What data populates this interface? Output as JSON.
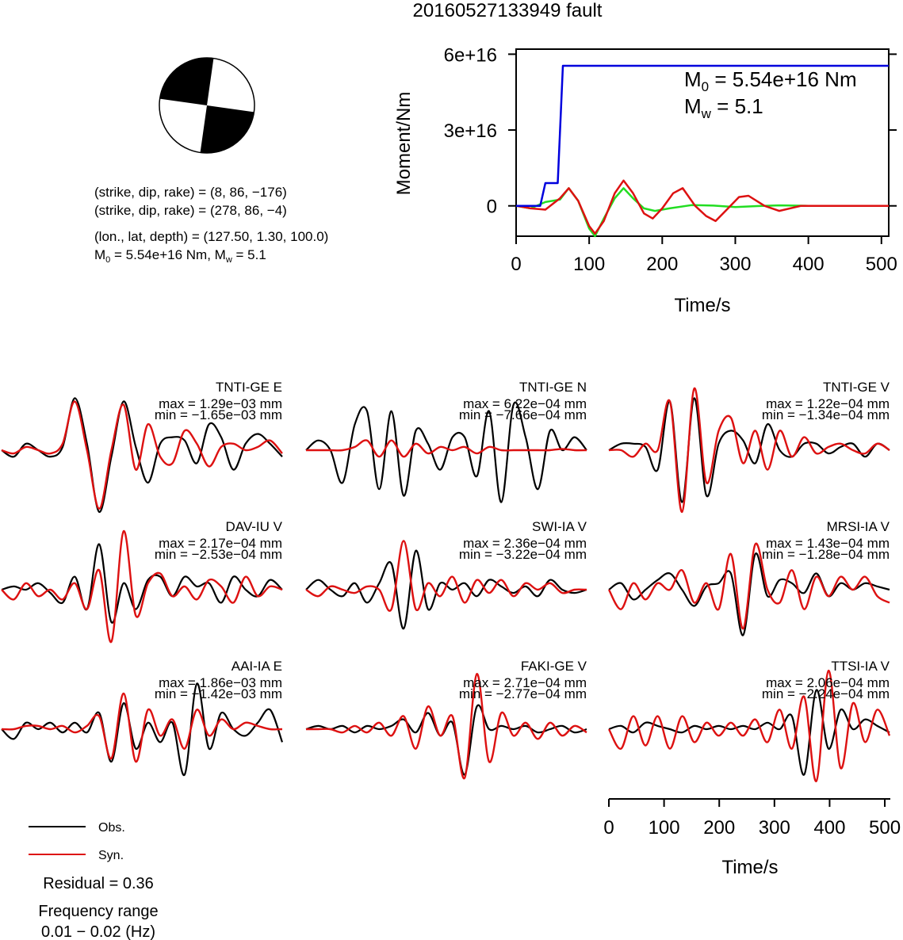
{
  "title": "20160527133949 fault",
  "info": {
    "line1": "(strike, dip, rake) = (8, 86, −176)",
    "line2": "(strike, dip, rake) = (278, 86, −4)",
    "line3": "(lon., lat, depth) = (127.50, 1.30, 100.0)",
    "m0_prefix": "M",
    "m0_sub": "0",
    "m0_rest": " = 5.54e+16 Nm, M",
    "mw_sub": "w",
    "mw_rest": " = 5.1"
  },
  "moment_plot": {
    "ylabel": "Moment/Nm",
    "xlabel": "Time/s",
    "yticks": [
      "0",
      "3e+16",
      "6e+16"
    ],
    "xticks": [
      "0",
      "100",
      "200",
      "300",
      "400",
      "500"
    ],
    "ann_m0_main": "M",
    "ann_m0_sub": "0",
    "ann_m0_rest": " = 5.54e+16 Nm",
    "ann_mw_main": "M",
    "ann_mw_sub": "w",
    "ann_mw_rest": " = 5.1"
  },
  "wave_axis": {
    "xlabel": "Time/s",
    "xticks": [
      "0",
      "100",
      "200",
      "300",
      "400",
      "500"
    ]
  },
  "legend": {
    "obs": "Obs.",
    "syn": "Syn.",
    "residual": "Residual = 0.36",
    "freq_title": "Frequency range",
    "freq_range": "0.01 − 0.02 (Hz)"
  },
  "colors": {
    "moment_cumulative": "#0000dd",
    "moment_rate_a": "#22dd22",
    "moment_rate_b": "#dd1111",
    "obs": "#000000",
    "syn": "#dd1111"
  },
  "chart_data": [
    {
      "type": "line",
      "title": "",
      "xlabel": "Time/s",
      "ylabel": "Moment/Nm",
      "xlim": [
        0,
        510
      ],
      "ylim": [
        -1.2e+16,
        6.2e+16
      ],
      "series": [
        {
          "x": [
            0,
            33,
            40,
            57,
            64,
            510
          ],
          "values": [
            0,
            0,
            9000000000000000.0,
            9000000000000000.0,
            5.54e+16,
            5.54e+16
          ]
        },
        {
          "x": [
            0,
            20,
            40,
            60,
            72,
            85,
            100,
            108,
            120,
            135,
            147,
            160,
            175,
            190,
            210,
            240,
            270,
            300,
            330,
            360,
            400,
            450,
            510
          ],
          "values": [
            0,
            -1000000000000000.0,
            1500000000000000.0,
            2500000000000000.0,
            7000000000000000.0,
            2000000000000000.0,
            -9000000000000000.0,
            -1.2e+16,
            -5000000000000000.0,
            3000000000000000.0,
            7000000000000000.0,
            3000000000000000.0,
            -1000000000000000.0,
            -2000000000000000.0,
            -1000000000000000.0,
            300000000000000.0,
            100000000000000.0,
            -500000000000000.0,
            -100000000000000.0,
            200000000000000.0,
            0,
            0,
            0
          ]
        },
        {
          "x": [
            0,
            20,
            40,
            60,
            72,
            85,
            100,
            108,
            120,
            135,
            147,
            160,
            175,
            187,
            200,
            215,
            228,
            245,
            260,
            273,
            290,
            305,
            318,
            340,
            360,
            390,
            430,
            470,
            510
          ],
          "values": [
            0,
            -1000000000000000.0,
            -1500000000000000.0,
            3000000000000000.0,
            7000000000000000.0,
            2000000000000000.0,
            -8000000000000000.0,
            -1.1e+16,
            -6000000000000000.0,
            5000000000000000.0,
            1e+16,
            5000000000000000.0,
            -3000000000000000.0,
            -5000000000000000.0,
            -1000000000000000.0,
            5000000000000000.0,
            7000000000000000.0,
            0,
            -4000000000000000.0,
            -6000000000000000.0,
            -1000000000000000.0,
            3500000000000000.0,
            4000000000000000.0,
            0,
            -2000000000000000.0,
            0,
            0,
            0,
            0
          ]
        }
      ],
      "annotations": [
        "M0 = 5.54e+16 Nm",
        "Mw = 5.1"
      ]
    },
    {
      "type": "line",
      "xlabel": "Time/s",
      "xlim": [
        0,
        510
      ],
      "stations": [
        {
          "name": "TNTI-GE E",
          "max": "max = 1.29e−03 mm",
          "min": "min = −1.65e−03 mm",
          "obs": [
            0,
            -0.1,
            0.1,
            0,
            -0.1,
            0.05,
            0.8,
            0.1,
            -0.95,
            -0.1,
            0.75,
            0.05,
            -0.5,
            0.1,
            0.2,
            0.15,
            -0.2,
            0.4,
            0.2,
            -0.3,
            0.1,
            0.25,
            0.1,
            -0.1
          ],
          "syn": [
            0,
            -0.05,
            0.05,
            0,
            -0.05,
            0.1,
            0.75,
            0,
            -0.9,
            0,
            0.7,
            -0.3,
            0.4,
            -0.1,
            -0.2,
            0.3,
            0.1,
            -0.25,
            0.05,
            0.1,
            0,
            0.05,
            0.15,
            -0.05
          ]
        },
        {
          "name": "TNTI-GE N",
          "max": "max = 6.22e−04 mm",
          "min": "min = −7.66e−04 mm",
          "obs": [
            0,
            0.15,
            0,
            -0.5,
            0.4,
            0.6,
            -0.6,
            0.6,
            -0.7,
            0.3,
            0.1,
            -0.3,
            0.2,
            0.2,
            -0.4,
            0.6,
            -0.8,
            0.7,
            0.2,
            -0.6,
            0.3,
            0,
            0.2,
            0
          ],
          "syn": [
            0,
            0,
            0,
            0,
            0.05,
            0.15,
            -0.1,
            0.15,
            -0.1,
            0.1,
            -0.05,
            0.05,
            0,
            0.05,
            -0.05,
            0.05,
            0,
            0,
            0,
            0,
            0,
            0.02,
            0,
            0
          ]
        },
        {
          "name": "TNTI-GE V",
          "max": "max = 1.22e−04 mm",
          "min": "min = −1.34e−04 mm",
          "obs": [
            0,
            0.1,
            0.1,
            0.05,
            -0.3,
            0.75,
            -0.8,
            0.8,
            -0.7,
            0.1,
            0.3,
            0.15,
            -0.2,
            0.4,
            0,
            -0.1,
            0.1,
            0.1,
            -0.05,
            0.05,
            0.1,
            -0.1,
            0.1,
            0
          ],
          "syn": [
            0,
            0,
            -0.1,
            0.1,
            0,
            0.75,
            -0.95,
            0.95,
            -0.5,
            0.3,
            0.5,
            -0.2,
            0.3,
            -0.3,
            0.3,
            -0.1,
            0.2,
            -0.05,
            0.05,
            0.1,
            0,
            -0.05,
            0.1,
            0
          ]
        },
        {
          "name": "DAV-IU V",
          "max": "max = 2.17e−04 mm",
          "min": "min = −2.53e−04 mm",
          "obs": [
            0,
            0.05,
            0,
            0.1,
            -0.05,
            -0.2,
            0.2,
            -0.3,
            0.7,
            -0.5,
            0.1,
            -0.3,
            0.15,
            0.2,
            -0.1,
            0.2,
            0.05,
            0.1,
            -0.2,
            0.2,
            0,
            -0.1,
            0.15,
            0
          ],
          "syn": [
            0,
            -0.15,
            0.1,
            -0.1,
            0,
            -0.15,
            0.1,
            -0.3,
            0.3,
            -0.8,
            0.9,
            -0.4,
            0.1,
            0.25,
            -0.1,
            0.05,
            -0.15,
            0.15,
            0.05,
            -0.2,
            0.2,
            -0.1,
            0.05,
            0
          ]
        },
        {
          "name": "SWI-IA V",
          "max": "max = 2.36e−04 mm",
          "min": "min = −3.22e−04 mm",
          "obs": [
            0,
            0.15,
            0,
            -0.1,
            0.1,
            -0.2,
            0.1,
            0.4,
            -0.6,
            0.6,
            -0.3,
            0.1,
            0,
            0.1,
            -0.1,
            0.15,
            0.05,
            -0.05,
            0.05,
            -0.1,
            0.15,
            0,
            -0.05,
            0
          ],
          "syn": [
            0,
            -0.1,
            0.05,
            0,
            -0.05,
            0.05,
            0,
            -0.3,
            0.75,
            -0.3,
            0.1,
            -0.1,
            0.2,
            -0.2,
            0.15,
            -0.05,
            0.15,
            -0.1,
            0.1,
            0,
            0.1,
            -0.05,
            0,
            0
          ]
        },
        {
          "name": "MRSI-IA V",
          "max": "max = 1.43e−04 mm",
          "min": "min = −1.28e−04 mm",
          "obs": [
            0,
            0.1,
            -0.15,
            0,
            0.15,
            0.25,
            0,
            -0.25,
            0.05,
            0.1,
            0.25,
            -0.7,
            0.55,
            -0.1,
            0.15,
            0.1,
            -0.05,
            0.25,
            -0.1,
            0.1,
            0,
            0.1,
            0.05,
            0
          ],
          "syn": [
            0,
            -0.3,
            0.1,
            -0.15,
            0.1,
            0,
            0.3,
            -0.2,
            0.1,
            -0.3,
            0.55,
            -0.6,
            0.7,
            0,
            -0.2,
            0.3,
            -0.3,
            0.2,
            -0.1,
            0.2,
            0,
            0.2,
            -0.1,
            -0.2
          ]
        },
        {
          "name": "AAI-IA E",
          "max": "max = 1.86e−03 mm",
          "min": "min = −1.42e−03 mm",
          "obs": [
            0,
            -0.15,
            0.1,
            0,
            0.1,
            -0.05,
            0.1,
            -0.05,
            0.25,
            -0.5,
            0.4,
            -0.3,
            0.1,
            -0.2,
            0.1,
            -0.7,
            0.7,
            -0.3,
            0.25,
            0,
            -0.1,
            0.1,
            0.3,
            -0.2
          ],
          "syn": [
            0,
            0,
            0.05,
            0.05,
            0,
            0.05,
            -0.05,
            0.05,
            0.2,
            -0.45,
            0.55,
            -0.5,
            0.3,
            -0.1,
            0.15,
            -0.3,
            0.3,
            -0.1,
            0.15,
            0,
            0.1,
            0.05,
            0,
            0
          ]
        },
        {
          "name": "FAKI-GE V",
          "max": "max = 2.71e−04 mm",
          "min": "min = −2.77e−04 mm",
          "obs": [
            0,
            0.05,
            0,
            0.05,
            -0.05,
            0.05,
            0,
            0.05,
            0.15,
            -0.05,
            0.25,
            -0.1,
            0.1,
            -0.7,
            0.35,
            0,
            0.05,
            0,
            0.05,
            -0.05,
            0,
            0.05,
            -0.05,
            0
          ],
          "syn": [
            0,
            0,
            0,
            -0.05,
            0.05,
            -0.05,
            0.1,
            -0.1,
            0.2,
            -0.3,
            0.35,
            -0.1,
            0.2,
            -0.75,
            0.85,
            -0.5,
            0.25,
            -0.1,
            0.1,
            -0.15,
            0.1,
            -0.1,
            0.05,
            -0.05
          ]
        },
        {
          "name": "TTSI-IA V",
          "max": "max = 2.06e−04 mm",
          "min": "min = −2.24e−04 mm",
          "obs": [
            0,
            0.05,
            -0.05,
            0.1,
            0.05,
            0,
            -0.05,
            0.05,
            0,
            0.05,
            0,
            0.05,
            0,
            0.1,
            0,
            0.2,
            -0.7,
            0.6,
            -0.3,
            0.3,
            0,
            0.15,
            0.05,
            -0.05
          ],
          "syn": [
            0,
            -0.3,
            0.2,
            -0.25,
            0.2,
            -0.3,
            0.2,
            -0.2,
            0.1,
            -0.1,
            0.1,
            -0.1,
            0.15,
            -0.2,
            0.3,
            -0.3,
            0.5,
            -0.8,
            0.9,
            -0.6,
            0.4,
            -0.2,
            0.3,
            -0.1
          ]
        }
      ]
    }
  ]
}
